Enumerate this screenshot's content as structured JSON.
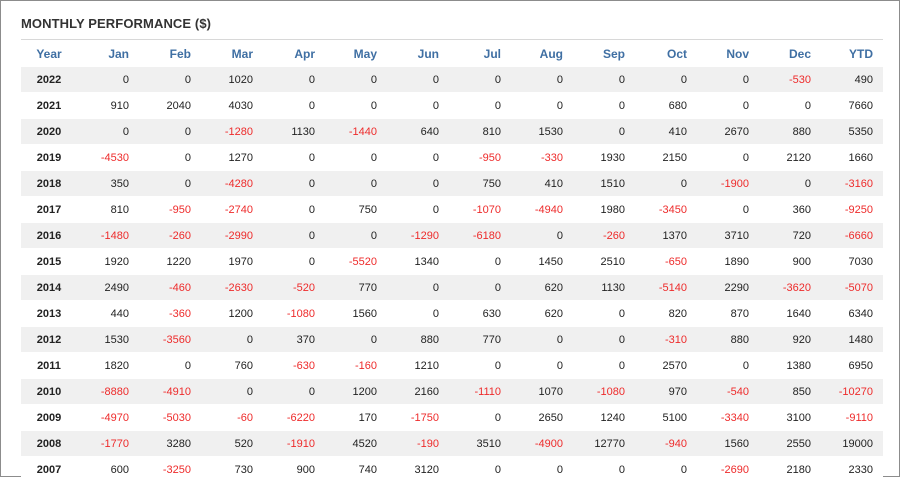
{
  "title": "MONTHLY PERFORMANCE ($)",
  "colors": {
    "header_text": "#3f6fa3",
    "negative": "#ee2b2b",
    "row_alt": "#f0f0f0"
  },
  "table": {
    "columns": [
      "Year",
      "Jan",
      "Feb",
      "Mar",
      "Apr",
      "May",
      "Jun",
      "Jul",
      "Aug",
      "Sep",
      "Oct",
      "Nov",
      "Dec",
      "YTD"
    ],
    "rows": [
      [
        "2022",
        "0",
        "0",
        "1020",
        "0",
        "0",
        "0",
        "0",
        "0",
        "0",
        "0",
        "0",
        "-530",
        "490"
      ],
      [
        "2021",
        "910",
        "2040",
        "4030",
        "0",
        "0",
        "0",
        "0",
        "0",
        "0",
        "680",
        "0",
        "0",
        "7660"
      ],
      [
        "2020",
        "0",
        "0",
        "-1280",
        "1130",
        "-1440",
        "640",
        "810",
        "1530",
        "0",
        "410",
        "2670",
        "880",
        "5350"
      ],
      [
        "2019",
        "-4530",
        "0",
        "1270",
        "0",
        "0",
        "0",
        "-950",
        "-330",
        "1930",
        "2150",
        "0",
        "2120",
        "1660"
      ],
      [
        "2018",
        "350",
        "0",
        "-4280",
        "0",
        "0",
        "0",
        "750",
        "410",
        "1510",
        "0",
        "-1900",
        "0",
        "-3160"
      ],
      [
        "2017",
        "810",
        "-950",
        "-2740",
        "0",
        "750",
        "0",
        "-1070",
        "-4940",
        "1980",
        "-3450",
        "0",
        "360",
        "-9250"
      ],
      [
        "2016",
        "-1480",
        "-260",
        "-2990",
        "0",
        "0",
        "-1290",
        "-6180",
        "0",
        "-260",
        "1370",
        "3710",
        "720",
        "-6660"
      ],
      [
        "2015",
        "1920",
        "1220",
        "1970",
        "0",
        "-5520",
        "1340",
        "0",
        "1450",
        "2510",
        "-650",
        "1890",
        "900",
        "7030"
      ],
      [
        "2014",
        "2490",
        "-460",
        "-2630",
        "-520",
        "770",
        "0",
        "0",
        "620",
        "1130",
        "-5140",
        "2290",
        "-3620",
        "-5070"
      ],
      [
        "2013",
        "440",
        "-360",
        "1200",
        "-1080",
        "1560",
        "0",
        "630",
        "620",
        "0",
        "820",
        "870",
        "1640",
        "6340"
      ],
      [
        "2012",
        "1530",
        "-3560",
        "0",
        "370",
        "0",
        "880",
        "770",
        "0",
        "0",
        "-310",
        "880",
        "920",
        "1480"
      ],
      [
        "2011",
        "1820",
        "0",
        "760",
        "-630",
        "-160",
        "1210",
        "0",
        "0",
        "0",
        "2570",
        "0",
        "1380",
        "6950"
      ],
      [
        "2010",
        "-8880",
        "-4910",
        "0",
        "0",
        "1200",
        "2160",
        "-1110",
        "1070",
        "-1080",
        "970",
        "-540",
        "850",
        "-10270"
      ],
      [
        "2009",
        "-4970",
        "-5030",
        "-60",
        "-6220",
        "170",
        "-1750",
        "0",
        "2650",
        "1240",
        "5100",
        "-3340",
        "3100",
        "-9110"
      ],
      [
        "2008",
        "-1770",
        "3280",
        "520",
        "-1910",
        "4520",
        "-190",
        "3510",
        "-4900",
        "12770",
        "-940",
        "1560",
        "2550",
        "19000"
      ],
      [
        "2007",
        "600",
        "-3250",
        "730",
        "900",
        "740",
        "3120",
        "0",
        "0",
        "0",
        "0",
        "-2690",
        "2180",
        "2330"
      ]
    ]
  }
}
